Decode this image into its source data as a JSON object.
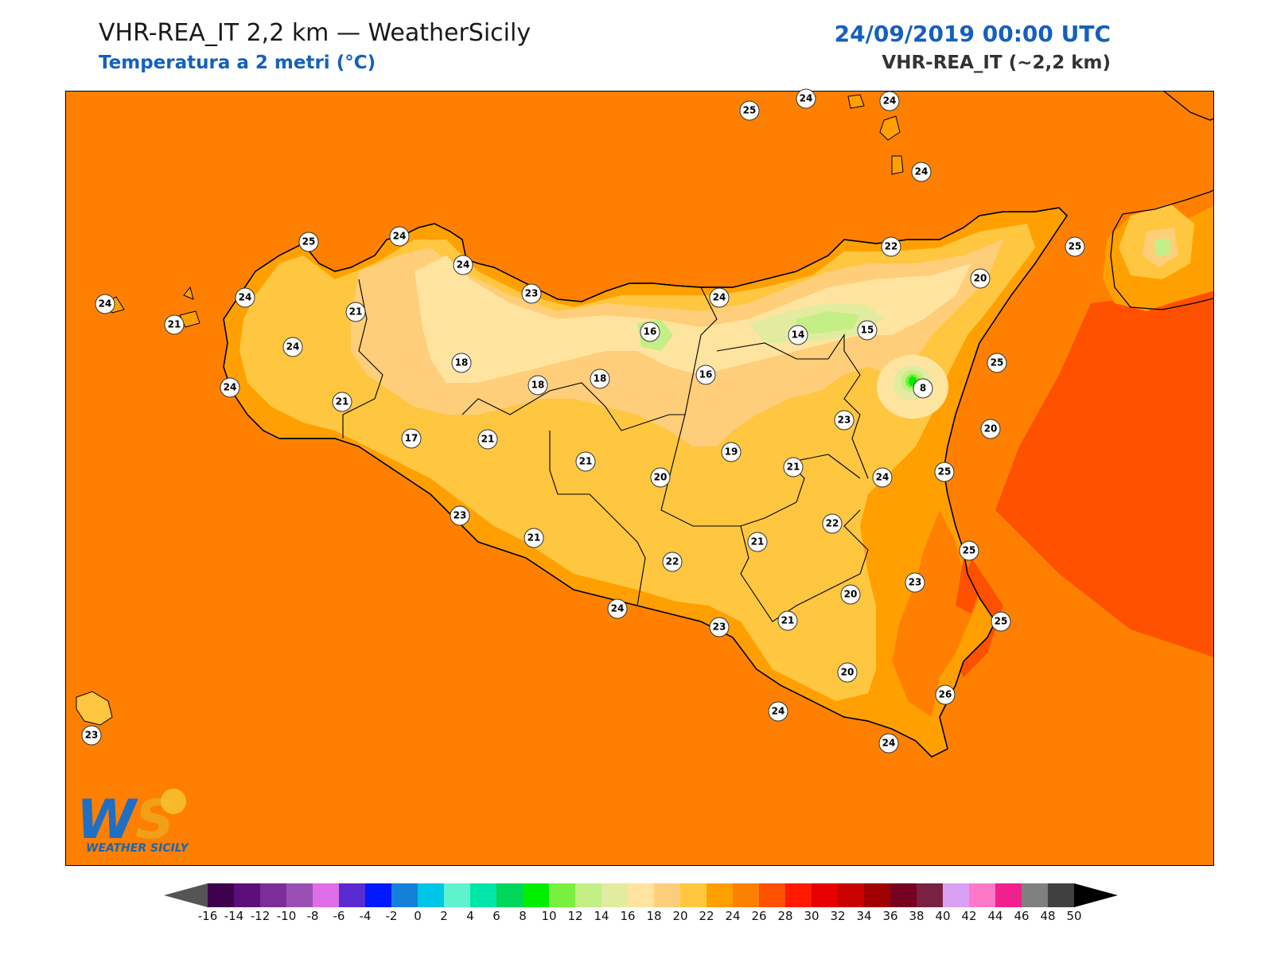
{
  "header": {
    "title": "VHR-REA_IT 2,2 km — WeatherSicily",
    "subtitle": "Temperatura a 2 metri (°C)",
    "datetime": "24/09/2019 00:00 UTC",
    "model": "VHR-REA_IT (~2,2 km)"
  },
  "logo": {
    "letters": "WS",
    "name": "WEATHER SICILY"
  },
  "map": {
    "variable": "2 m temperature",
    "unit": "°C",
    "region": "Sicily",
    "background_color": "#ff8000"
  },
  "station_labels": [
    {
      "value": "25"
    },
    {
      "value": "24"
    },
    {
      "value": "24"
    },
    {
      "value": "24"
    },
    {
      "value": "25"
    },
    {
      "value": "24"
    },
    {
      "value": "24"
    },
    {
      "value": "24"
    },
    {
      "value": "23"
    },
    {
      "value": "24"
    },
    {
      "value": "21"
    },
    {
      "value": "21"
    },
    {
      "value": "24"
    },
    {
      "value": "24"
    },
    {
      "value": "21"
    },
    {
      "value": "24"
    },
    {
      "value": "18"
    },
    {
      "value": "16"
    },
    {
      "value": "16"
    },
    {
      "value": "18"
    },
    {
      "value": "18"
    },
    {
      "value": "17"
    },
    {
      "value": "21"
    },
    {
      "value": "22"
    },
    {
      "value": "20"
    },
    {
      "value": "25"
    },
    {
      "value": "14"
    },
    {
      "value": "15"
    },
    {
      "value": "25"
    },
    {
      "value": "8"
    },
    {
      "value": "23"
    },
    {
      "value": "21"
    },
    {
      "value": "20"
    },
    {
      "value": "19"
    },
    {
      "value": "21"
    },
    {
      "value": "24"
    },
    {
      "value": "25"
    },
    {
      "value": "23"
    },
    {
      "value": "22"
    },
    {
      "value": "20"
    },
    {
      "value": "21"
    },
    {
      "value": "21"
    },
    {
      "value": "22"
    },
    {
      "value": "25"
    },
    {
      "value": "23"
    },
    {
      "value": "20"
    },
    {
      "value": "24"
    },
    {
      "value": "23"
    },
    {
      "value": "21"
    },
    {
      "value": "25"
    },
    {
      "value": "20"
    },
    {
      "value": "26"
    },
    {
      "value": "24"
    },
    {
      "value": "24"
    },
    {
      "value": "23"
    }
  ],
  "colorbar": {
    "ticks": [
      "-16",
      "-14",
      "-12",
      "-10",
      "-8",
      "-6",
      "-4",
      "-2",
      "0",
      "2",
      "4",
      "6",
      "8",
      "10",
      "12",
      "14",
      "16",
      "18",
      "20",
      "22",
      "24",
      "26",
      "28",
      "30",
      "32",
      "34",
      "36",
      "38",
      "40",
      "42",
      "44",
      "46",
      "48",
      "50"
    ],
    "colors": [
      "#3d004d",
      "#5c0f7a",
      "#7a2e99",
      "#9a4fb5",
      "#df6ee8",
      "#5a2bd0",
      "#0019ff",
      "#1480da",
      "#00c6e6",
      "#5ff2cf",
      "#00e6a8",
      "#00d65a",
      "#00ee00",
      "#78f040",
      "#c4ef86",
      "#e2eca0",
      "#ffe4a0",
      "#ffce7a",
      "#ffc640",
      "#ffa000",
      "#ff8000",
      "#ff5000",
      "#ff1a00",
      "#e60000",
      "#c80000",
      "#a00000",
      "#780020",
      "#7a2040",
      "#d9a0f5",
      "#ff78c8",
      "#f0208c",
      "#808080",
      "#404040"
    ],
    "under_color": "#555555",
    "over_color": "#000000"
  }
}
